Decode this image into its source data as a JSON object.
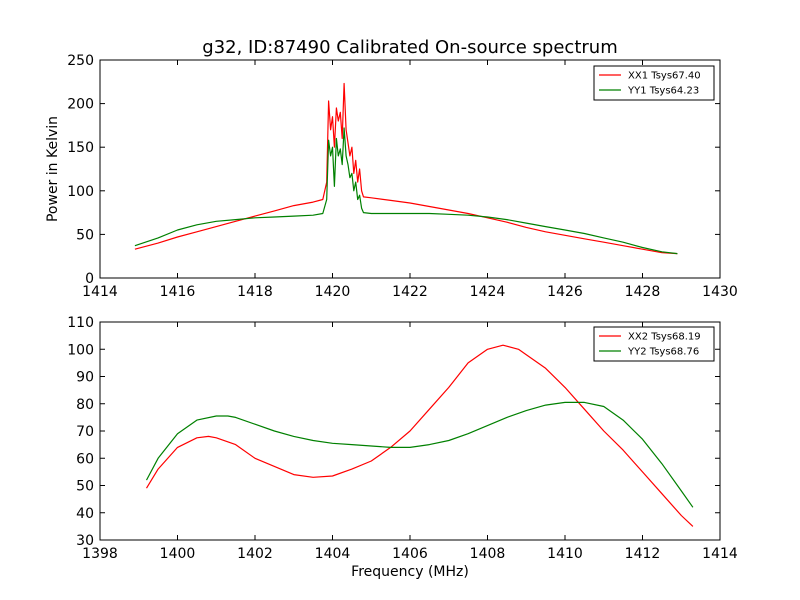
{
  "figure": {
    "title": "g32, ID:87490 Calibrated On-source spectrum"
  },
  "colors": {
    "xx": "#ff0000",
    "yy": "#008000"
  },
  "chart_data": [
    {
      "type": "line",
      "title": "g32, ID:87490 Calibrated On-source spectrum",
      "xlabel": "",
      "ylabel": "Power in Kelvin",
      "xlim": [
        1414,
        1430
      ],
      "ylim": [
        0,
        250
      ],
      "xticks": [
        1414,
        1416,
        1418,
        1420,
        1422,
        1424,
        1426,
        1428,
        1430
      ],
      "yticks": [
        0,
        50,
        100,
        150,
        200,
        250
      ],
      "legend": "top-right",
      "grid": false,
      "series": [
        {
          "name": "XX1 Tsys67.40",
          "color": "#ff0000",
          "x": [
            1414.9,
            1415.5,
            1416.0,
            1416.5,
            1417.0,
            1417.5,
            1418.0,
            1418.5,
            1419.0,
            1419.5,
            1419.75,
            1419.85,
            1419.9,
            1419.95,
            1420.0,
            1420.05,
            1420.1,
            1420.15,
            1420.2,
            1420.25,
            1420.3,
            1420.35,
            1420.4,
            1420.45,
            1420.5,
            1420.55,
            1420.6,
            1420.65,
            1420.7,
            1420.75,
            1420.8,
            1421.0,
            1421.5,
            1422.0,
            1422.5,
            1423.0,
            1423.5,
            1424.0,
            1424.5,
            1425.0,
            1425.5,
            1426.0,
            1426.5,
            1427.0,
            1427.5,
            1428.0,
            1428.5,
            1428.9
          ],
          "y": [
            33,
            40,
            47,
            53,
            59,
            65,
            71,
            77,
            83,
            87,
            90,
            110,
            203,
            170,
            185,
            150,
            195,
            180,
            190,
            160,
            223,
            170,
            155,
            140,
            150,
            120,
            135,
            110,
            125,
            100,
            93,
            92,
            89,
            86,
            82,
            78,
            74,
            69,
            64,
            58,
            53,
            49,
            45,
            41,
            37,
            33,
            29,
            28
          ]
        },
        {
          "name": "YY1 Tsys64.23",
          "color": "#008000",
          "x": [
            1414.9,
            1415.5,
            1416.0,
            1416.5,
            1417.0,
            1417.5,
            1418.0,
            1418.5,
            1419.0,
            1419.5,
            1419.75,
            1419.85,
            1419.9,
            1419.95,
            1420.0,
            1420.05,
            1420.1,
            1420.15,
            1420.2,
            1420.25,
            1420.3,
            1420.35,
            1420.4,
            1420.45,
            1420.5,
            1420.55,
            1420.6,
            1420.65,
            1420.7,
            1420.75,
            1420.8,
            1421.0,
            1421.5,
            1422.0,
            1422.5,
            1423.0,
            1423.5,
            1424.0,
            1424.5,
            1425.0,
            1425.5,
            1426.0,
            1426.5,
            1427.0,
            1427.5,
            1428.0,
            1428.5,
            1428.9
          ],
          "y": [
            37,
            46,
            55,
            61,
            65,
            67,
            69,
            70,
            71,
            72,
            74,
            90,
            158,
            140,
            150,
            105,
            160,
            140,
            148,
            130,
            172,
            140,
            130,
            115,
            120,
            100,
            110,
            90,
            95,
            80,
            75,
            74,
            74,
            74,
            74,
            73,
            72,
            70,
            67,
            63,
            59,
            55,
            51,
            46,
            41,
            35,
            30,
            28
          ]
        }
      ]
    },
    {
      "type": "line",
      "title": "",
      "xlabel": "Frequency (MHz)",
      "ylabel": "",
      "xlim": [
        1398,
        1414
      ],
      "ylim": [
        30,
        110
      ],
      "xticks": [
        1398,
        1400,
        1402,
        1404,
        1406,
        1408,
        1410,
        1412,
        1414
      ],
      "yticks": [
        30,
        40,
        50,
        60,
        70,
        80,
        90,
        100,
        110
      ],
      "legend": "top-right",
      "grid": false,
      "series": [
        {
          "name": "XX2 Tsys68.19",
          "color": "#ff0000",
          "x": [
            1399.2,
            1399.5,
            1400.0,
            1400.5,
            1400.8,
            1401.0,
            1401.5,
            1402.0,
            1402.5,
            1403.0,
            1403.5,
            1404.0,
            1404.5,
            1405.0,
            1405.5,
            1406.0,
            1406.5,
            1407.0,
            1407.5,
            1408.0,
            1408.4,
            1408.8,
            1409.0,
            1409.5,
            1410.0,
            1410.5,
            1411.0,
            1411.5,
            1412.0,
            1412.5,
            1413.0,
            1413.3
          ],
          "y": [
            49,
            56,
            64,
            67.5,
            68,
            67.5,
            65,
            60,
            57,
            54,
            53,
            53.5,
            56,
            59,
            64,
            70,
            78,
            86,
            95,
            100,
            101.5,
            100,
            98,
            93,
            86,
            78,
            70,
            63,
            55,
            47,
            39,
            35
          ]
        },
        {
          "name": "YY2 Tsys68.76",
          "color": "#008000",
          "x": [
            1399.2,
            1399.5,
            1400.0,
            1400.5,
            1401.0,
            1401.3,
            1401.5,
            1402.0,
            1402.5,
            1403.0,
            1403.5,
            1404.0,
            1404.5,
            1405.0,
            1405.5,
            1406.0,
            1406.5,
            1407.0,
            1407.5,
            1408.0,
            1408.5,
            1409.0,
            1409.5,
            1410.0,
            1410.5,
            1411.0,
            1411.5,
            1412.0,
            1412.5,
            1413.0,
            1413.3
          ],
          "y": [
            52,
            60,
            69,
            74,
            75.5,
            75.5,
            75,
            72.5,
            70,
            68,
            66.5,
            65.5,
            65,
            64.5,
            64,
            64,
            65,
            66.5,
            69,
            72,
            75,
            77.5,
            79.5,
            80.5,
            80.5,
            79,
            74,
            67,
            58,
            48,
            42
          ]
        }
      ]
    }
  ]
}
